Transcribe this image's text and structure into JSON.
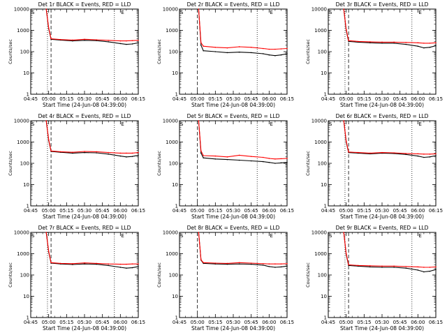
{
  "chart_data": [
    {
      "type": "line",
      "title": "Det 1r BLACK = Events, RED = LLD",
      "xlabel": "Start Time (24-Jun-08 04:39:00)",
      "ylabel": "Counts/sec",
      "yscale": "log",
      "ylim": [
        1,
        10000
      ],
      "xlim": [
        "04:45",
        "06:15"
      ],
      "x_tick_labels": [
        "04:45",
        "05:00",
        "05:15",
        "05:30",
        "05:45",
        "06:00",
        "06:15"
      ],
      "y_tick_labels": [
        "1",
        "10",
        "100",
        "1000",
        "10000"
      ],
      "markers": [
        {
          "label": "S",
          "time": "04:45"
        },
        {
          "label": "E",
          "time": "06:00"
        }
      ],
      "vlines": [
        {
          "time": "04:59",
          "style": "dotted"
        },
        {
          "time": "05:02",
          "style": "dashed"
        },
        {
          "time": "05:55",
          "style": "dotted"
        }
      ],
      "series": [
        {
          "color": "#000000",
          "x": [
            "04:58",
            "05:00",
            "05:02",
            "05:10",
            "05:20",
            "05:30",
            "05:40",
            "05:50",
            "06:00",
            "06:05",
            "06:10",
            "06:15"
          ],
          "values": [
            10000,
            1200,
            380,
            350,
            320,
            340,
            330,
            290,
            240,
            220,
            230,
            260
          ]
        },
        {
          "color": "#ff0000",
          "x": [
            "04:58",
            "05:00",
            "05:02",
            "05:10",
            "05:20",
            "05:30",
            "05:40",
            "05:50",
            "06:00",
            "06:05",
            "06:10",
            "06:15"
          ],
          "values": [
            10000,
            1300,
            400,
            370,
            350,
            380,
            360,
            340,
            320,
            320,
            330,
            340
          ]
        }
      ]
    },
    {
      "type": "line",
      "title": "Det 2r BLACK = Events, RED = LLD",
      "xlabel": "Start Time (24-Jun-08 04:39:00)",
      "ylabel": "Counts/sec",
      "yscale": "log",
      "ylim": [
        1,
        10000
      ],
      "xlim": [
        "04:45",
        "06:15"
      ],
      "x_tick_labels": [
        "04:45",
        "05:00",
        "05:15",
        "05:30",
        "05:45",
        "06:00",
        "06:15"
      ],
      "y_tick_labels": [
        "1",
        "10",
        "100",
        "1000",
        "10000"
      ],
      "markers": [
        {
          "label": "S",
          "time": "04:45"
        },
        {
          "label": "E",
          "time": "06:00"
        }
      ],
      "vlines": [
        {
          "time": "05:00",
          "style": "dashed"
        },
        {
          "time": "05:50",
          "style": "dotted"
        }
      ],
      "series": [
        {
          "color": "#000000",
          "x": [
            "05:01",
            "05:03",
            "05:05",
            "05:15",
            "05:25",
            "05:35",
            "05:45",
            "05:55",
            "06:00",
            "06:05",
            "06:10",
            "06:15"
          ],
          "values": [
            10000,
            200,
            110,
            100,
            90,
            95,
            90,
            80,
            70,
            65,
            70,
            80
          ]
        },
        {
          "color": "#ff0000",
          "x": [
            "05:01",
            "05:03",
            "05:05",
            "05:15",
            "05:25",
            "05:35",
            "05:45",
            "05:55",
            "06:00",
            "06:05",
            "06:10",
            "06:15"
          ],
          "values": [
            10000,
            260,
            180,
            160,
            150,
            170,
            160,
            140,
            130,
            130,
            135,
            140
          ]
        }
      ]
    },
    {
      "type": "line",
      "title": "Det 3r BLACK = Events, RED = LLD",
      "xlabel": "Start Time (24-Jun-08 04:39:00)",
      "ylabel": "Counts/sec",
      "yscale": "log",
      "ylim": [
        1,
        10000
      ],
      "xlim": [
        "04:45",
        "06:15"
      ],
      "x_tick_labels": [
        "04:45",
        "05:00",
        "05:15",
        "05:30",
        "05:45",
        "06:00",
        "06:15"
      ],
      "y_tick_labels": [
        "1",
        "10",
        "100",
        "1000",
        "10000"
      ],
      "markers": [
        {
          "label": "S",
          "time": "04:45"
        },
        {
          "label": "E",
          "time": "06:00"
        }
      ],
      "vlines": [
        {
          "time": "04:59",
          "style": "dotted"
        },
        {
          "time": "05:02",
          "style": "dashed"
        },
        {
          "time": "05:55",
          "style": "dotted"
        }
      ],
      "series": [
        {
          "color": "#000000",
          "x": [
            "04:58",
            "05:00",
            "05:02",
            "05:10",
            "05:20",
            "05:30",
            "05:40",
            "05:50",
            "06:00",
            "06:05",
            "06:10",
            "06:15"
          ],
          "values": [
            10000,
            1000,
            300,
            280,
            260,
            250,
            250,
            220,
            180,
            150,
            160,
            190
          ]
        },
        {
          "color": "#ff0000",
          "x": [
            "04:58",
            "05:00",
            "05:02",
            "05:10",
            "05:20",
            "05:30",
            "05:40",
            "05:50",
            "06:00",
            "06:05",
            "06:10",
            "06:15"
          ],
          "values": [
            10000,
            1100,
            330,
            300,
            290,
            280,
            280,
            270,
            260,
            250,
            250,
            260
          ]
        }
      ]
    },
    {
      "type": "line",
      "title": "Det 4r BLACK = Events, RED = LLD",
      "xlabel": "Start Time (24-Jun-08 04:39:00)",
      "ylabel": "Counts/sec",
      "yscale": "log",
      "ylim": [
        1,
        10000
      ],
      "xlim": [
        "04:45",
        "06:15"
      ],
      "x_tick_labels": [
        "04:45",
        "05:00",
        "05:15",
        "05:30",
        "05:45",
        "06:00",
        "06:15"
      ],
      "y_tick_labels": [
        "1",
        "10",
        "100",
        "1000",
        "10000"
      ],
      "markers": [
        {
          "label": "S",
          "time": "04:45"
        },
        {
          "label": "E",
          "time": "06:00"
        }
      ],
      "vlines": [
        {
          "time": "04:59",
          "style": "dotted"
        },
        {
          "time": "05:02",
          "style": "dashed"
        },
        {
          "time": "05:55",
          "style": "dotted"
        }
      ],
      "series": [
        {
          "color": "#000000",
          "x": [
            "04:58",
            "05:00",
            "05:02",
            "05:10",
            "05:20",
            "05:30",
            "05:40",
            "05:50",
            "06:00",
            "06:05",
            "06:10",
            "06:15"
          ],
          "values": [
            10000,
            1200,
            360,
            330,
            300,
            320,
            310,
            270,
            220,
            200,
            210,
            240
          ]
        },
        {
          "color": "#ff0000",
          "x": [
            "04:58",
            "05:00",
            "05:02",
            "05:10",
            "05:20",
            "05:30",
            "05:40",
            "05:50",
            "06:00",
            "06:05",
            "06:10",
            "06:15"
          ],
          "values": [
            10000,
            1300,
            380,
            350,
            330,
            360,
            350,
            320,
            300,
            300,
            300,
            320
          ]
        }
      ]
    },
    {
      "type": "line",
      "title": "Det 5r BLACK = Events, RED = LLD",
      "xlabel": "Start Time (24-Jun-08 04:39:00)",
      "ylabel": "Counts/sec",
      "yscale": "log",
      "ylim": [
        1,
        10000
      ],
      "xlim": [
        "04:45",
        "06:15"
      ],
      "x_tick_labels": [
        "04:45",
        "05:00",
        "05:15",
        "05:30",
        "05:45",
        "06:00",
        "06:15"
      ],
      "y_tick_labels": [
        "1",
        "10",
        "100",
        "1000",
        "10000"
      ],
      "markers": [
        {
          "label": "S",
          "time": "04:45"
        },
        {
          "label": "E",
          "time": "06:00"
        }
      ],
      "vlines": [
        {
          "time": "05:00",
          "style": "dashed"
        },
        {
          "time": "05:50",
          "style": "dotted"
        }
      ],
      "series": [
        {
          "color": "#000000",
          "x": [
            "05:01",
            "05:03",
            "05:05",
            "05:15",
            "05:25",
            "05:35",
            "05:45",
            "05:55",
            "06:00",
            "06:05",
            "06:10",
            "06:15"
          ],
          "values": [
            10000,
            300,
            180,
            160,
            150,
            140,
            130,
            120,
            110,
            100,
            105,
            110
          ]
        },
        {
          "color": "#ff0000",
          "x": [
            "05:01",
            "05:03",
            "05:05",
            "05:15",
            "05:25",
            "05:35",
            "05:45",
            "05:55",
            "06:00",
            "06:05",
            "06:10",
            "06:15"
          ],
          "values": [
            10000,
            380,
            230,
            220,
            200,
            240,
            210,
            190,
            170,
            160,
            165,
            170
          ]
        }
      ]
    },
    {
      "type": "line",
      "title": "Det 6r BLACK = Events, RED = LLD",
      "xlabel": "Start Time (24-Jun-08 04:39:00)",
      "ylabel": "Counts/sec",
      "yscale": "log",
      "ylim": [
        1,
        10000
      ],
      "xlim": [
        "04:45",
        "06:15"
      ],
      "x_tick_labels": [
        "04:45",
        "05:00",
        "05:15",
        "05:30",
        "05:45",
        "06:00",
        "06:15"
      ],
      "y_tick_labels": [
        "1",
        "10",
        "100",
        "1000",
        "10000"
      ],
      "markers": [
        {
          "label": "S",
          "time": "04:45"
        },
        {
          "label": "E",
          "time": "06:00"
        }
      ],
      "vlines": [
        {
          "time": "04:59",
          "style": "dotted"
        },
        {
          "time": "05:02",
          "style": "dashed"
        },
        {
          "time": "05:55",
          "style": "dotted"
        }
      ],
      "series": [
        {
          "color": "#000000",
          "x": [
            "04:58",
            "05:00",
            "05:02",
            "05:10",
            "05:20",
            "05:30",
            "05:40",
            "05:50",
            "06:00",
            "06:05",
            "06:10",
            "06:15"
          ],
          "values": [
            10000,
            1000,
            320,
            300,
            280,
            300,
            290,
            260,
            220,
            190,
            200,
            230
          ]
        },
        {
          "color": "#ff0000",
          "x": [
            "04:58",
            "05:00",
            "05:02",
            "05:10",
            "05:20",
            "05:30",
            "05:40",
            "05:50",
            "06:00",
            "06:05",
            "06:10",
            "06:15"
          ],
          "values": [
            10000,
            1100,
            340,
            320,
            300,
            320,
            310,
            290,
            280,
            270,
            270,
            280
          ]
        }
      ]
    },
    {
      "type": "line",
      "title": "Det 7r BLACK = Events, RED = LLD",
      "xlabel": "Start Time (24-Jun-08 04:39:00)",
      "ylabel": "Counts/sec",
      "yscale": "log",
      "ylim": [
        1,
        10000
      ],
      "xlim": [
        "04:45",
        "06:15"
      ],
      "x_tick_labels": [
        "04:45",
        "05:00",
        "05:15",
        "05:30",
        "05:45",
        "06:00",
        "06:15"
      ],
      "y_tick_labels": [
        "1",
        "10",
        "100",
        "1000",
        "10000"
      ],
      "markers": [
        {
          "label": "S",
          "time": "04:45"
        },
        {
          "label": "E",
          "time": "06:00"
        }
      ],
      "vlines": [
        {
          "time": "04:59",
          "style": "dotted"
        },
        {
          "time": "05:02",
          "style": "dashed"
        },
        {
          "time": "05:55",
          "style": "dotted"
        }
      ],
      "series": [
        {
          "color": "#000000",
          "x": [
            "04:58",
            "05:00",
            "05:02",
            "05:10",
            "05:20",
            "05:30",
            "05:40",
            "05:50",
            "06:00",
            "06:05",
            "06:10",
            "06:15"
          ],
          "values": [
            10000,
            1200,
            360,
            330,
            310,
            330,
            320,
            280,
            230,
            210,
            220,
            250
          ]
        },
        {
          "color": "#ff0000",
          "x": [
            "04:58",
            "05:00",
            "05:02",
            "05:10",
            "05:20",
            "05:30",
            "05:40",
            "05:50",
            "06:00",
            "06:05",
            "06:10",
            "06:15"
          ],
          "values": [
            10000,
            1300,
            380,
            350,
            340,
            370,
            350,
            330,
            320,
            320,
            330,
            330
          ]
        }
      ]
    },
    {
      "type": "line",
      "title": "Det 8r BLACK = Events, RED = LLD",
      "xlabel": "Start Time (24-Jun-08 04:39:00)",
      "ylabel": "Counts/sec",
      "yscale": "log",
      "ylim": [
        1,
        10000
      ],
      "xlim": [
        "04:45",
        "06:15"
      ],
      "x_tick_labels": [
        "04:45",
        "05:00",
        "05:15",
        "05:30",
        "05:45",
        "06:00",
        "06:15"
      ],
      "y_tick_labels": [
        "1",
        "10",
        "100",
        "1000",
        "10000"
      ],
      "markers": [
        {
          "label": "S",
          "time": "04:45"
        },
        {
          "label": "E",
          "time": "06:00"
        }
      ],
      "vlines": [
        {
          "time": "05:00",
          "style": "dashed"
        },
        {
          "time": "05:50",
          "style": "dotted"
        }
      ],
      "series": [
        {
          "color": "#000000",
          "x": [
            "05:01",
            "05:03",
            "05:05",
            "05:15",
            "05:25",
            "05:35",
            "05:45",
            "05:55",
            "06:00",
            "06:05",
            "06:10",
            "06:15"
          ],
          "values": [
            10000,
            500,
            350,
            330,
            320,
            330,
            320,
            290,
            250,
            230,
            240,
            260
          ]
        },
        {
          "color": "#ff0000",
          "x": [
            "05:01",
            "05:03",
            "05:05",
            "05:15",
            "05:25",
            "05:35",
            "05:45",
            "05:55",
            "06:00",
            "06:05",
            "06:10",
            "06:15"
          ],
          "values": [
            10000,
            520,
            380,
            360,
            350,
            380,
            360,
            340,
            330,
            330,
            330,
            340
          ]
        }
      ]
    },
    {
      "type": "line",
      "title": "Det 9r BLACK = Events, RED = LLD",
      "xlabel": "Start Time (24-Jun-08 04:39:00)",
      "ylabel": "Counts/sec",
      "yscale": "log",
      "ylim": [
        1,
        10000
      ],
      "xlim": [
        "04:45",
        "06:15"
      ],
      "x_tick_labels": [
        "04:45",
        "05:00",
        "05:15",
        "05:30",
        "05:45",
        "06:00",
        "06:15"
      ],
      "y_tick_labels": [
        "1",
        "10",
        "100",
        "1000",
        "10000"
      ],
      "markers": [
        {
          "label": "S",
          "time": "04:45"
        },
        {
          "label": "E",
          "time": "06:00"
        }
      ],
      "vlines": [
        {
          "time": "04:59",
          "style": "dotted"
        },
        {
          "time": "05:02",
          "style": "dashed"
        },
        {
          "time": "05:55",
          "style": "dotted"
        }
      ],
      "series": [
        {
          "color": "#000000",
          "x": [
            "04:58",
            "05:00",
            "05:02",
            "05:10",
            "05:20",
            "05:30",
            "05:40",
            "05:50",
            "06:00",
            "06:05",
            "06:10",
            "06:15"
          ],
          "values": [
            10000,
            900,
            280,
            260,
            240,
            230,
            230,
            210,
            170,
            140,
            150,
            180
          ]
        },
        {
          "color": "#ff0000",
          "x": [
            "04:58",
            "05:00",
            "05:02",
            "05:10",
            "05:20",
            "05:30",
            "05:40",
            "05:50",
            "06:00",
            "06:05",
            "06:10",
            "06:15"
          ],
          "values": [
            10000,
            1000,
            300,
            280,
            270,
            260,
            260,
            250,
            240,
            230,
            230,
            240
          ]
        }
      ]
    }
  ]
}
